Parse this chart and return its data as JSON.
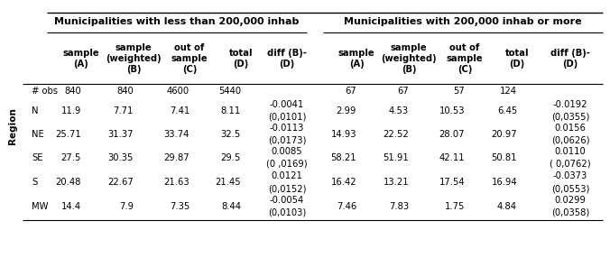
{
  "group1_header": "Municipalities with less than 200,000 inhab",
  "group2_header": "Municipalities with 200,000 inhab or more",
  "col_headers": [
    "sample\n(A)",
    "sample\n(weighted)\n(B)",
    "out of\nsample\n(C)",
    "total\n(D)",
    "diff (B)-\n(D)"
  ],
  "row_labels": [
    "# obs",
    "N",
    "NE",
    "SE",
    "S",
    "MW"
  ],
  "group1_data": [
    [
      "840",
      "840",
      "4600",
      "5440",
      ""
    ],
    [
      "11.9",
      "7.71",
      "7.41",
      "8.11",
      "-0.0041\n(0,0101)"
    ],
    [
      "25.71",
      "31.37",
      "33.74",
      "32.5",
      "-0.0113\n(0,0173)"
    ],
    [
      "27.5",
      "30.35",
      "29.87",
      "29.5",
      "0.0085\n(0 ,0169)"
    ],
    [
      "20.48",
      "22.67",
      "21.63",
      "21.45",
      "0.0121\n(0,0152)"
    ],
    [
      "14.4",
      "7.9",
      "7.35",
      "8.44",
      "-0.0054\n(0,0103)"
    ]
  ],
  "group2_data": [
    [
      "67",
      "67",
      "57",
      "124",
      ""
    ],
    [
      "2.99",
      "4.53",
      "10.53",
      "6.45",
      "-0.0192\n(0,0355)"
    ],
    [
      "14.93",
      "22.52",
      "28.07",
      "20.97",
      "0.0156\n(0,0626)"
    ],
    [
      "58.21",
      "51.91",
      "42.11",
      "50.81",
      "0.0110\n( 0,0762)"
    ],
    [
      "16.42",
      "13.21",
      "17.54",
      "16.94",
      "-0.0373\n(0,0553)"
    ],
    [
      "7.46",
      "7.83",
      "1.75",
      "4.84",
      "0.0299\n(0,0358)"
    ]
  ],
  "bg_color": "white",
  "text_color": "black",
  "font_size": 7.2,
  "header_font_size": 8.0,
  "region_font_size": 7.5
}
